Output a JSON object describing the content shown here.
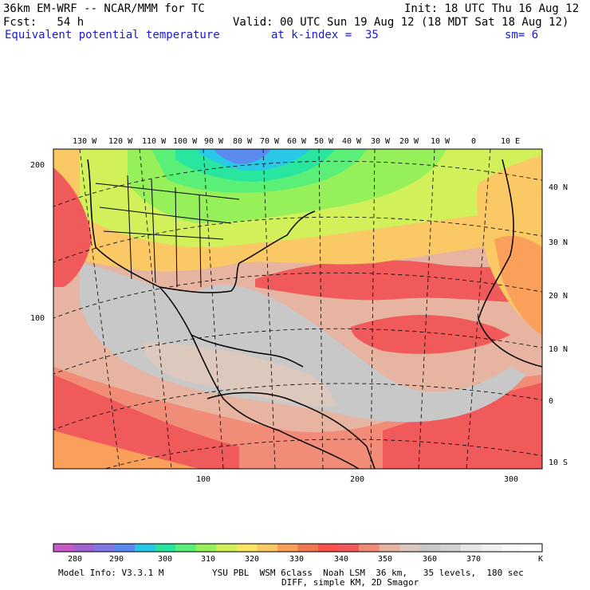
{
  "header": {
    "model": "36km EM-WRF -- NCAR/MMM for TC",
    "init": "Init: 18 UTC Thu 16 Aug 12",
    "fcst": "Fcst:   54 h",
    "valid": "Valid: 00 UTC Sun 19 Aug 12 (18 MDT Sat 18 Aug 12)",
    "field": "Equivalent potential temperature",
    "level": "at k-index =  35",
    "smooth": "sm= 6"
  },
  "map": {
    "lon_labels": [
      "130 W",
      "120 W",
      "110 W",
      "100 W",
      "90 W",
      "80 W",
      "70 W",
      "60 W",
      "50 W",
      "40 W",
      "30 W",
      "20 W",
      "10 W",
      "0",
      "10 E"
    ],
    "lat_labels": [
      "40 N",
      "30 N",
      "20 N",
      "10 N",
      "0",
      "10 S"
    ],
    "y_ticks": [
      "200",
      "100"
    ],
    "x_ticks": [
      "100",
      "200",
      "300"
    ]
  },
  "colorbar": {
    "labels": [
      "280",
      "290",
      "300",
      "310",
      "320",
      "330",
      "340",
      "350",
      "360",
      "370"
    ],
    "unit": "K",
    "colors": [
      "#c85ac8",
      "#a064d2",
      "#8278e6",
      "#5a8cf0",
      "#28c8e6",
      "#28e6a0",
      "#5af078",
      "#96f05a",
      "#d2f05a",
      "#fae664",
      "#fac864",
      "#faa05a",
      "#f07850",
      "#ff5050",
      "#f05a5a",
      "#f08c78",
      "#e6b4a0",
      "#dcc8bc",
      "#c8c8c8",
      "#d2d2d2",
      "#e6e6e6",
      "#f0f0f0",
      "#fafafa",
      "#ffffff"
    ]
  },
  "footer": {
    "model_info": "Model Info: V3.3.1 M",
    "physics": "YSU PBL  WSM 6class  Noah LSM  36 km,   35 levels,  180 sec",
    "diff": "DIFF, simple KM, 2D Smagor"
  }
}
